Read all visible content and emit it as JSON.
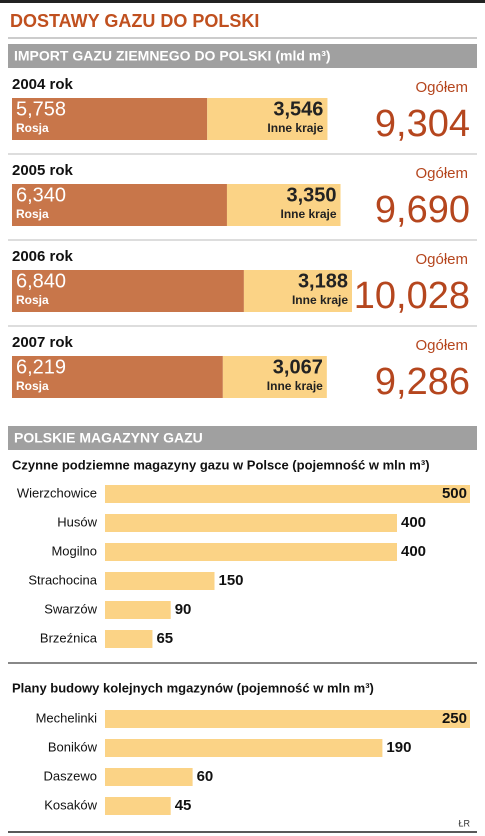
{
  "title": "DOSTAWY GAZU DO POLSKI",
  "section_titles": [
    "IMPORT GAZU ZIEMNEGO DO POLSKI (mld m³)",
    "POLSKIE MAGAZYNY GAZU"
  ],
  "source": "ŁR",
  "chart_data": [
    {
      "type": "stacked-bar",
      "categories": [
        "2004 rok",
        "2005 rok",
        "2006 rok",
        "2007 rok"
      ],
      "series": [
        {
          "name": "Rosja",
          "color": "#c8764a",
          "values": [
            5.758,
            6.34,
            6.84,
            6.219
          ],
          "value_labels": [
            "5,758",
            "6,340",
            "6,840",
            "6,219"
          ]
        },
        {
          "name": "Inne kraje",
          "color": "#fbd386",
          "values": [
            3.546,
            3.35,
            3.188,
            3.067
          ],
          "value_labels": [
            "3,546",
            "3,350",
            "3,188",
            "3,067"
          ]
        }
      ],
      "totals": {
        "name": "Ogółem",
        "color": "#b5461e",
        "values": [
          9.304,
          9.69,
          10.028,
          9.286
        ],
        "value_labels": [
          "9,304",
          "9,690",
          "10,028",
          "9,286"
        ]
      }
    },
    {
      "type": "bar",
      "title": "Czynne podziemne magazyny gazu w Polsce (pojemność w mln m³)",
      "color": "#fbd386",
      "categories": [
        "Wierzchowice",
        "Husów",
        "Mogilno",
        "Strachocina",
        "Swarzów",
        "Brzeźnica"
      ],
      "values": [
        500,
        400,
        400,
        150,
        90,
        65
      ]
    },
    {
      "type": "bar",
      "title": "Plany budowy kolejnych mgazynów (pojemność w mln m³)",
      "color": "#fbd386",
      "categories": [
        "Mechelinki",
        "Boników",
        "Daszewo",
        "Kosaków"
      ],
      "values": [
        250,
        190,
        60,
        45
      ]
    }
  ]
}
